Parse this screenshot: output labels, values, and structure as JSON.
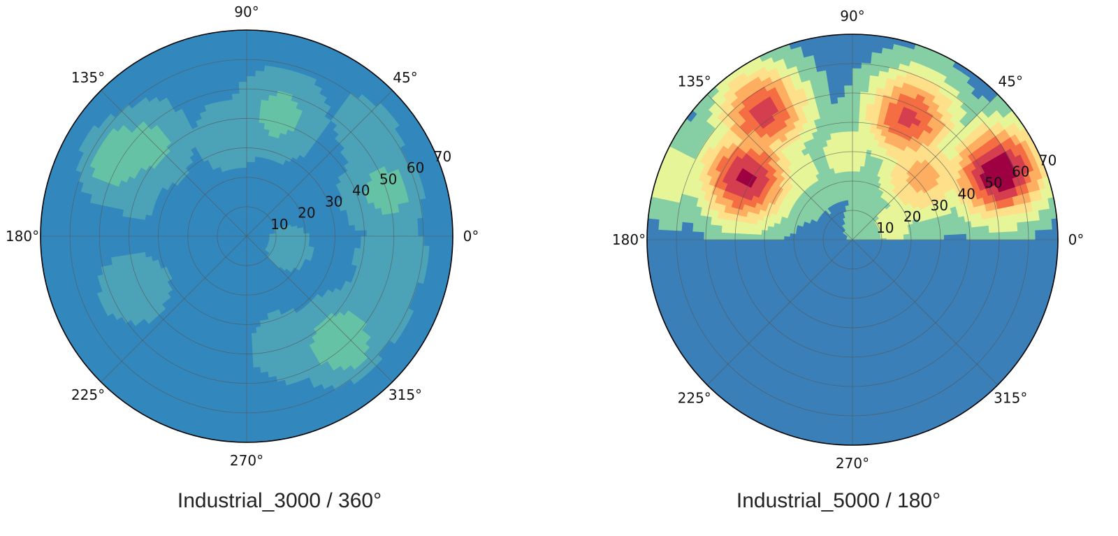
{
  "chart_data": [
    {
      "type": "heatmap",
      "projection": "polar",
      "subtitle": "Industrial_3000 / 360°",
      "theta_tick_labels": [
        "0°",
        "45°",
        "90°",
        "135°",
        "180°",
        "225°",
        "270°",
        "315°"
      ],
      "theta_ticks_deg": [
        0,
        45,
        90,
        135,
        180,
        225,
        270,
        315
      ],
      "r_tick_labels": [
        "10",
        "20",
        "30",
        "40",
        "50",
        "60",
        "70"
      ],
      "r_ticks": [
        10,
        20,
        30,
        40,
        50,
        60,
        70
      ],
      "rlim": [
        0,
        70
      ],
      "grid": true,
      "colormap": "Spectral_r",
      "level_colors": [
        "#5e4fa2",
        "#3f70b0",
        "#3288bd",
        "#4ca3b8",
        "#66c2a5",
        "#99d5a4",
        "#abdda4",
        "#e6f598"
      ],
      "hotspots": [
        {
          "theta_deg": 18,
          "r": 50,
          "value": 0.55
        },
        {
          "theta_deg": 40,
          "r": 58,
          "value": 0.5
        },
        {
          "theta_deg": 75,
          "r": 43,
          "value": 0.55
        },
        {
          "theta_deg": 100,
          "r": 35,
          "value": 0.45
        },
        {
          "theta_deg": 148,
          "r": 52,
          "value": 0.6
        },
        {
          "theta_deg": 138,
          "r": 46,
          "value": 0.55
        },
        {
          "theta_deg": 160,
          "r": 40,
          "value": 0.4
        },
        {
          "theta_deg": 205,
          "r": 42,
          "value": 0.45
        },
        {
          "theta_deg": 228,
          "r": 30,
          "value": 0.35
        },
        {
          "theta_deg": 218,
          "r": 52,
          "value": 0.35
        },
        {
          "theta_deg": 290,
          "r": 40,
          "value": 0.45
        },
        {
          "theta_deg": 312,
          "r": 48,
          "value": 0.6
        },
        {
          "theta_deg": 330,
          "r": 52,
          "value": 0.5
        },
        {
          "theta_deg": 350,
          "r": 52,
          "value": 0.5
        },
        {
          "theta_deg": 345,
          "r": 15,
          "value": 0.4
        },
        {
          "theta_deg": 20,
          "r": 28,
          "value": 0.35
        },
        {
          "theta_deg": 180,
          "r": 22,
          "value": 0.35
        },
        {
          "theta_deg": 255,
          "r": 22,
          "value": 0.3
        }
      ],
      "base_value": 0.28
    },
    {
      "type": "heatmap",
      "projection": "polar",
      "subtitle": "Industrial_5000 / 180°",
      "theta_tick_labels": [
        "0°",
        "45°",
        "90°",
        "135°",
        "180°",
        "225°",
        "270°",
        "315°"
      ],
      "theta_ticks_deg": [
        0,
        45,
        90,
        135,
        180,
        225,
        270,
        315
      ],
      "r_tick_labels": [
        "10",
        "20",
        "30",
        "40",
        "50",
        "60",
        "70"
      ],
      "r_ticks": [
        10,
        20,
        30,
        40,
        50,
        60,
        70
      ],
      "rlim": [
        0,
        70
      ],
      "grid": true,
      "colormap": "Spectral_r",
      "level_colors": [
        "#3a7fb8",
        "#86cfa5",
        "#e6f598",
        "#fee08b",
        "#fdae61",
        "#f46d43",
        "#d53e4f",
        "#9e0142"
      ],
      "hotspots": [
        {
          "theta_deg": 25,
          "r": 55,
          "value": 1.0
        },
        {
          "theta_deg": 65,
          "r": 46,
          "value": 0.78
        },
        {
          "theta_deg": 42,
          "r": 32,
          "value": 0.55
        },
        {
          "theta_deg": 125,
          "r": 53,
          "value": 0.8
        },
        {
          "theta_deg": 150,
          "r": 42,
          "value": 0.9
        },
        {
          "theta_deg": 160,
          "r": 65,
          "value": 0.32
        },
        {
          "theta_deg": 130,
          "r": 30,
          "value": 0.3
        },
        {
          "theta_deg": 22,
          "r": 15,
          "value": 0.28
        },
        {
          "theta_deg": 95,
          "r": 30,
          "value": 0.3
        }
      ],
      "base_value": 0.05,
      "lower_half_empty": true
    }
  ]
}
